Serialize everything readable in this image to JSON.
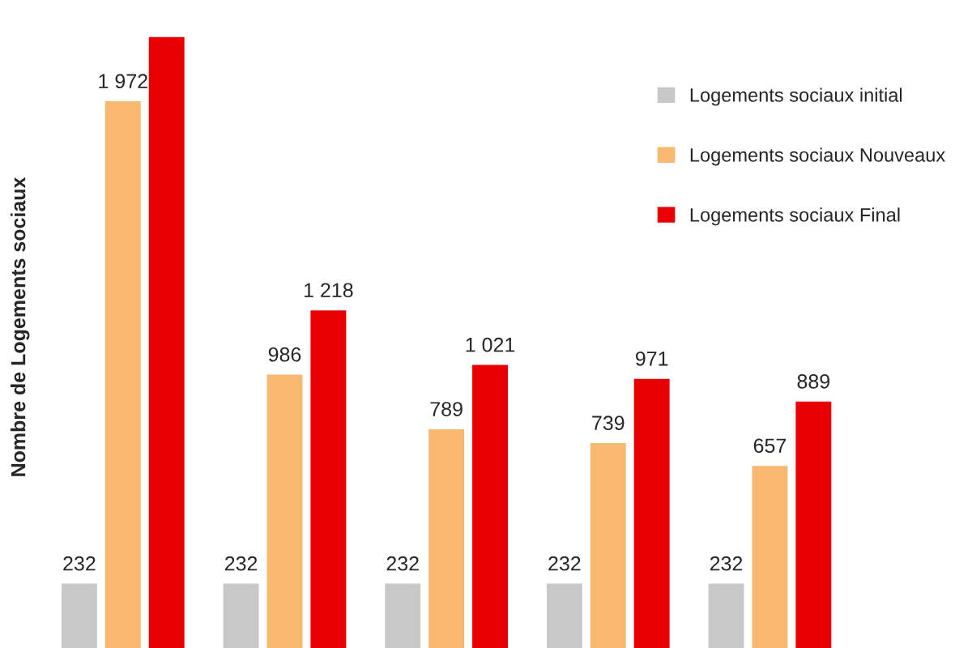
{
  "chart_data": {
    "type": "bar",
    "ylabel": "Nombre de Logements sociaux",
    "categories": [
      null,
      null,
      null,
      null,
      null
    ],
    "series": [
      {
        "name": "Logements sociaux initial",
        "color": "#c8c8c8",
        "values": [
          232,
          232,
          232,
          232,
          232
        ],
        "value_labels": [
          "232",
          "232",
          "232",
          "232",
          "232"
        ]
      },
      {
        "name": "Logements sociaux Nouveaux",
        "color": "#f9b870",
        "values": [
          1972,
          986,
          789,
          739,
          657
        ],
        "value_labels": [
          "1 972",
          "986",
          "789",
          "739",
          "657"
        ]
      },
      {
        "name": "Logements sociaux Final",
        "color": "#e80000",
        "values": [
          2204,
          1218,
          1021,
          971,
          889
        ],
        "value_labels": [
          null,
          "1 218",
          "1 021",
          "971",
          "889"
        ]
      }
    ],
    "legend": "top right",
    "grid": false
  }
}
